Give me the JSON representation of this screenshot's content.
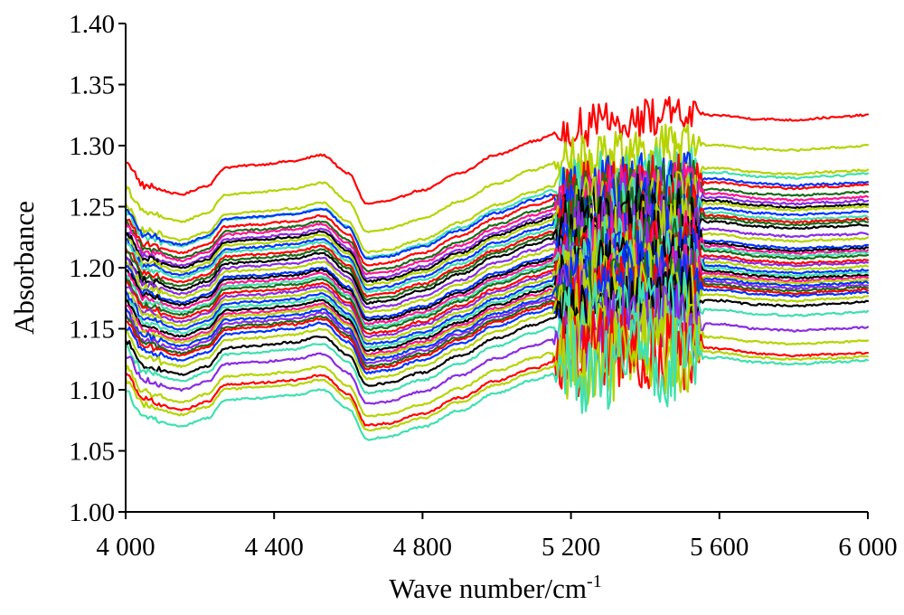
{
  "chart_data": {
    "type": "line",
    "title": "",
    "xlabel": "Wave number/cm",
    "xlabel_superscript": "-1",
    "ylabel": "Absorbance",
    "xlim": [
      4000,
      6000
    ],
    "ylim": [
      1.0,
      1.4
    ],
    "x_ticks": [
      4000,
      4400,
      4800,
      5200,
      5600,
      6000
    ],
    "x_tick_labels": [
      "4 000",
      "4 400",
      "4 800",
      "5 200",
      "5 600",
      "6 000"
    ],
    "y_ticks": [
      1.0,
      1.05,
      1.1,
      1.15,
      1.2,
      1.25,
      1.3,
      1.35,
      1.4
    ],
    "y_tick_labels": [
      "1.00",
      "1.05",
      "1.10",
      "1.15",
      "1.20",
      "1.25",
      "1.30",
      "1.35",
      "1.40"
    ],
    "grid": false,
    "legend": "none",
    "x_step": 5,
    "noise_region": [
      5150,
      5560
    ],
    "profile_points": [
      [
        4000,
        0.0
      ],
      [
        4050,
        -0.02
      ],
      [
        4150,
        -0.027
      ],
      [
        4220,
        -0.02
      ],
      [
        4270,
        -0.005
      ],
      [
        4350,
        -0.003
      ],
      [
        4450,
        0.0
      ],
      [
        4530,
        0.005
      ],
      [
        4600,
        -0.01
      ],
      [
        4650,
        -0.035
      ],
      [
        4700,
        -0.033
      ],
      [
        4800,
        -0.024
      ],
      [
        4900,
        -0.01
      ],
      [
        5000,
        0.005
      ],
      [
        5100,
        0.016
      ],
      [
        5150,
        0.021
      ],
      [
        5200,
        0.026
      ],
      [
        5300,
        0.032
      ],
      [
        5400,
        0.035
      ],
      [
        5500,
        0.037
      ],
      [
        5600,
        0.037
      ],
      [
        5700,
        0.034
      ],
      [
        5800,
        0.033
      ],
      [
        5900,
        0.035
      ],
      [
        6000,
        0.037
      ]
    ],
    "series": [
      {
        "color": "#ff0000",
        "offset": 1.287,
        "end": 1.325,
        "noise": 0.016
      },
      {
        "color": "#b5d400",
        "offset": 1.265,
        "end": 1.3,
        "noise": 0.018
      },
      {
        "color": "#b5d400",
        "offset": 1.25,
        "end": 1.28,
        "noise": 0.022
      },
      {
        "color": "#40e0b0",
        "offset": 1.245,
        "end": 1.277,
        "noise": 0.022
      },
      {
        "color": "#0033ff",
        "offset": 1.247,
        "end": 1.27,
        "noise": 0.024
      },
      {
        "color": "#ff0000",
        "offset": 1.24,
        "end": 1.268,
        "noise": 0.026
      },
      {
        "color": "#1a6b1a",
        "offset": 1.236,
        "end": 1.262,
        "noise": 0.024
      },
      {
        "color": "#ff1493",
        "offset": 1.234,
        "end": 1.258,
        "noise": 0.026
      },
      {
        "color": "#8a2be2",
        "offset": 1.23,
        "end": 1.255,
        "noise": 0.026
      },
      {
        "color": "#000000",
        "offset": 1.228,
        "end": 1.252,
        "noise": 0.024
      },
      {
        "color": "#b5d400",
        "offset": 1.225,
        "end": 1.25,
        "noise": 0.028
      },
      {
        "color": "#0033ff",
        "offset": 1.222,
        "end": 1.246,
        "noise": 0.028
      },
      {
        "color": "#40e0b0",
        "offset": 1.22,
        "end": 1.242,
        "noise": 0.03
      },
      {
        "color": "#ff0000",
        "offset": 1.216,
        "end": 1.24,
        "noise": 0.028
      },
      {
        "color": "#1a6b1a",
        "offset": 1.213,
        "end": 1.238,
        "noise": 0.028
      },
      {
        "color": "#000000",
        "offset": 1.21,
        "end": 1.235,
        "noise": 0.028
      },
      {
        "color": "#8a2be2",
        "offset": 1.207,
        "end": 1.228,
        "noise": 0.03
      },
      {
        "color": "#b5d400",
        "offset": 1.204,
        "end": 1.224,
        "noise": 0.03
      },
      {
        "color": "#0033ff",
        "offset": 1.2,
        "end": 1.218,
        "noise": 0.03
      },
      {
        "color": "#000000",
        "offset": 1.198,
        "end": 1.216,
        "noise": 0.03
      },
      {
        "color": "#ff1493",
        "offset": 1.195,
        "end": 1.214,
        "noise": 0.03
      },
      {
        "color": "#40e0b0",
        "offset": 1.192,
        "end": 1.212,
        "noise": 0.03
      },
      {
        "color": "#1a6b1a",
        "offset": 1.19,
        "end": 1.21,
        "noise": 0.03
      },
      {
        "color": "#ff0000",
        "offset": 1.187,
        "end": 1.206,
        "noise": 0.03
      },
      {
        "color": "#8a2be2",
        "offset": 1.184,
        "end": 1.204,
        "noise": 0.03
      },
      {
        "color": "#b5d400",
        "offset": 1.181,
        "end": 1.201,
        "noise": 0.03
      },
      {
        "color": "#0033ff",
        "offset": 1.178,
        "end": 1.198,
        "noise": 0.03
      },
      {
        "color": "#40e0b0",
        "offset": 1.175,
        "end": 1.196,
        "noise": 0.03
      },
      {
        "color": "#000000",
        "offset": 1.172,
        "end": 1.194,
        "noise": 0.03
      },
      {
        "color": "#ff1493",
        "offset": 1.169,
        "end": 1.192,
        "noise": 0.03
      },
      {
        "color": "#b5d400",
        "offset": 1.167,
        "end": 1.19,
        "noise": 0.03
      },
      {
        "color": "#0033ff",
        "offset": 1.164,
        "end": 1.188,
        "noise": 0.03
      },
      {
        "color": "#8a2be2",
        "offset": 1.161,
        "end": 1.186,
        "noise": 0.03
      },
      {
        "color": "#1a6b1a",
        "offset": 1.158,
        "end": 1.184,
        "noise": 0.03
      },
      {
        "color": "#ff0000",
        "offset": 1.156,
        "end": 1.182,
        "noise": 0.03
      },
      {
        "color": "#0033ff",
        "offset": 1.152,
        "end": 1.18,
        "noise": 0.03
      },
      {
        "color": "#b5d400",
        "offset": 1.147,
        "end": 1.176,
        "noise": 0.03
      },
      {
        "color": "#000000",
        "offset": 1.14,
        "end": 1.172,
        "noise": 0.028
      },
      {
        "color": "#40e0b0",
        "offset": 1.135,
        "end": 1.164,
        "noise": 0.03
      },
      {
        "color": "#8a2be2",
        "offset": 1.128,
        "end": 1.151,
        "noise": 0.032
      },
      {
        "color": "#b5d400",
        "offset": 1.118,
        "end": 1.14,
        "noise": 0.034
      },
      {
        "color": "#ff0000",
        "offset": 1.112,
        "end": 1.13,
        "noise": 0.036
      },
      {
        "color": "#b5d400",
        "offset": 1.108,
        "end": 1.127,
        "noise": 0.038
      },
      {
        "color": "#40e0b0",
        "offset": 1.098,
        "end": 1.124,
        "noise": 0.04
      }
    ]
  }
}
